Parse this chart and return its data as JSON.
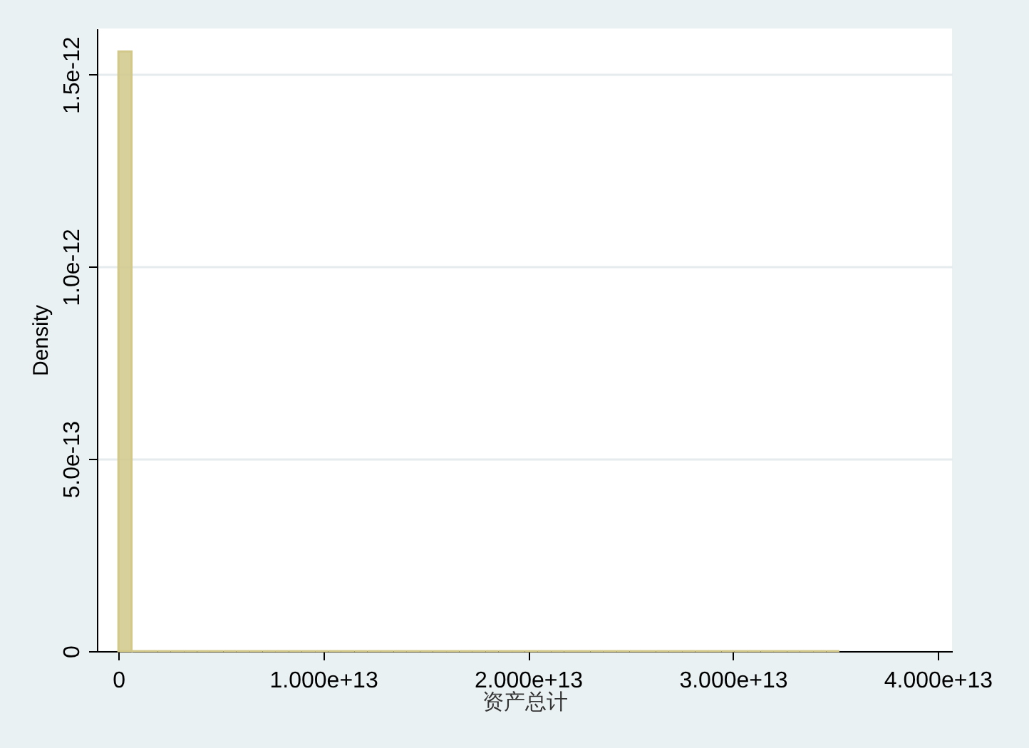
{
  "chart_data": {
    "type": "histogram",
    "xlabel": "资产总计",
    "ylabel": "Density",
    "bins": [
      0,
      640000000000.0,
      1280000000000.0,
      1920000000000.0,
      2560000000000.0,
      3200000000000.0,
      3840000000000.0,
      4480000000000.0,
      5120000000000.0,
      5760000000000.0,
      6400000000000.0,
      7040000000000.0,
      7680000000000.0,
      8320000000000.0,
      8960000000000.0,
      9600000000000.0,
      10240000000000.0,
      10880000000000.0,
      11520000000000.0,
      12160000000000.0,
      12800000000000.0,
      13440000000000.0,
      14080000000000.0,
      14720000000000.0,
      15360000000000.0,
      16000000000000.0,
      16640000000000.0,
      17280000000000.0,
      17920000000000.0,
      18560000000000.0,
      19200000000000.0,
      19840000000000.0,
      20480000000000.0,
      21120000000000.0,
      21760000000000.0,
      22400000000000.0,
      23040000000000.0,
      23680000000000.0,
      24320000000000.0,
      24960000000000.0,
      25600000000000.0,
      26240000000000.0,
      26880000000000.0,
      27520000000000.0,
      28160000000000.0,
      28800000000000.0,
      29440000000000.0,
      30080000000000.0,
      30720000000000.0,
      31360000000000.0,
      32000000000000.0,
      32640000000000.0,
      33280000000000.0,
      33920000000000.0,
      34560000000000.0,
      35200000000000.0
    ],
    "values": [
      1.56e-12,
      0,
      0,
      0,
      0,
      0,
      0,
      0,
      0,
      0,
      0,
      0,
      0,
      0,
      0,
      0,
      0,
      0,
      0,
      0,
      0,
      0,
      0,
      0,
      0,
      0,
      0,
      0,
      0,
      0,
      0,
      0,
      0,
      0,
      0,
      0,
      0,
      0,
      0,
      0,
      0,
      0,
      0,
      0,
      0,
      0,
      0,
      0,
      0,
      0,
      0,
      0,
      0,
      0,
      0
    ],
    "color": "#d1c88a",
    "xlim": [
      -1050000000000.0,
      40700000000000.0
    ],
    "xticks": [
      0,
      {
        "value": 10000000000000.0,
        "label": "1.000e+13"
      },
      {
        "value": 20000000000000.0,
        "label": "2.000e+13"
      },
      {
        "value": 30000000000000.0,
        "label": "3.000e+13"
      },
      {
        "value": 40000000000000.0,
        "label": "4.000e+13"
      }
    ],
    "ylim": [
      0,
      1.62e-12
    ],
    "yticks": [
      0,
      {
        "value": 5e-13,
        "label": "5.0e-13"
      },
      {
        "value": 1e-12,
        "label": "1.0e-12"
      },
      {
        "value": 1.5e-12,
        "label": "1.5e-12"
      }
    ],
    "grid": "y"
  }
}
